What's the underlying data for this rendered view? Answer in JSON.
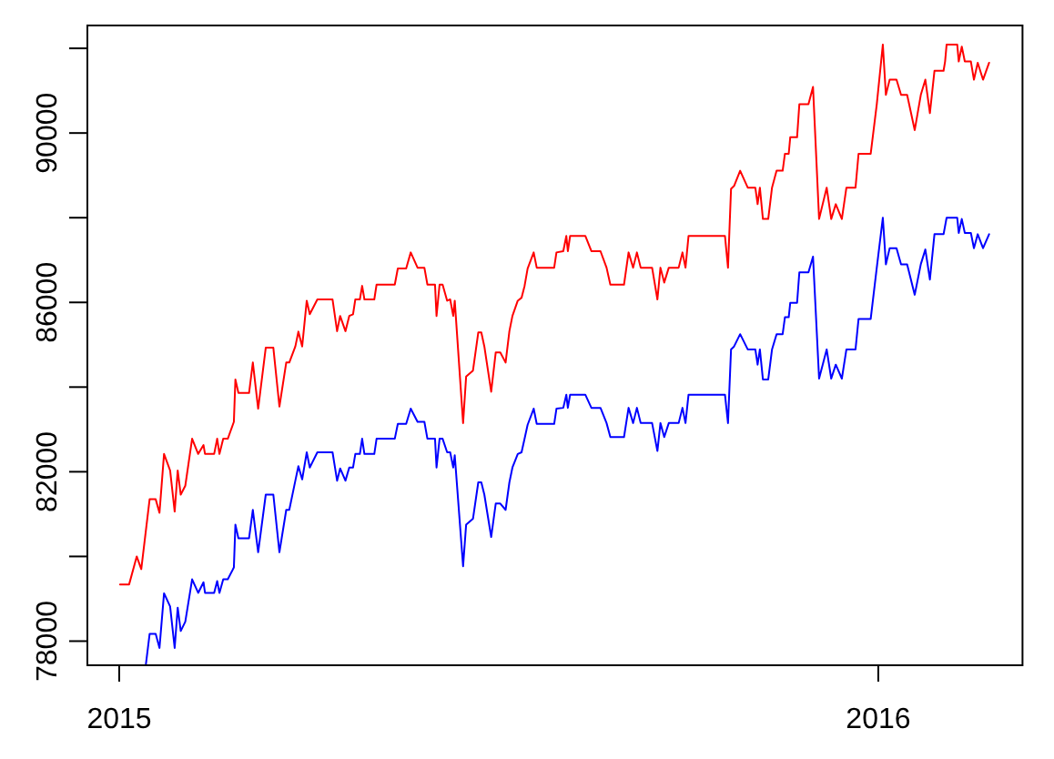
{
  "chart_data": {
    "type": "line",
    "xlim": [
      2014.958,
      2016.19
    ],
    "xticks": [
      2015,
      2016
    ],
    "ylim": [
      77430,
      92540
    ],
    "yticks": [
      78000,
      {
        "value": 80000,
        "label": null
      },
      82000,
      {
        "value": 84000,
        "label": null
      },
      86000,
      {
        "value": 88000,
        "label": null
      },
      90000,
      {
        "value": 92000,
        "label": null
      }
    ],
    "series": [
      {
        "color": "#ff0000",
        "x": [
          2015.001,
          2015.013,
          2015.023,
          2015.029,
          2015.04,
          2015.048,
          2015.053,
          2015.059,
          2015.067,
          2015.073,
          2015.077,
          2015.081,
          2015.087,
          2015.096,
          2015.104,
          2015.111,
          2015.113,
          2015.125,
          2015.129,
          2015.132,
          2015.137,
          2015.143,
          2015.151,
          2015.153,
          2015.157,
          2015.171,
          2015.176,
          2015.183,
          2015.193,
          2015.203,
          2015.211,
          2015.22,
          2015.224,
          2015.232,
          2015.236,
          2015.241,
          2015.247,
          2015.251,
          2015.261,
          2015.281,
          2015.287,
          2015.291,
          2015.298,
          2015.303,
          2015.308,
          2015.311,
          2015.317,
          2015.32,
          2015.323,
          2015.336,
          2015.339,
          2015.363,
          2015.367,
          2015.378,
          2015.384,
          2015.393,
          2015.402,
          2015.406,
          2015.416,
          2015.418,
          2015.422,
          2015.426,
          2015.432,
          2015.436,
          2015.44,
          2015.442,
          2015.453,
          2015.457,
          2015.466,
          2015.473,
          2015.477,
          2015.481,
          2015.49,
          2015.496,
          2015.502,
          2015.509,
          2015.514,
          2015.518,
          2015.525,
          2015.53,
          2015.534,
          2015.538,
          2015.546,
          2015.55,
          2015.573,
          2015.576,
          2015.585,
          2015.589,
          2015.591,
          2015.594,
          2015.614,
          2015.622,
          2015.634,
          2015.642,
          2015.647,
          2015.665,
          2015.671,
          2015.677,
          2015.682,
          2015.687,
          2015.702,
          2015.709,
          2015.713,
          2015.718,
          2015.724,
          2015.737,
          2015.742,
          2015.746,
          2015.75,
          2015.798,
          2015.802,
          2015.806,
          2015.81,
          2015.818,
          2015.828,
          2015.838,
          2015.841,
          2015.844,
          2015.848,
          2015.855,
          2015.86,
          2015.866,
          2015.874,
          2015.877,
          2015.882,
          2015.884,
          2015.893,
          2015.896,
          2015.908,
          2015.914,
          2015.922,
          2015.932,
          2015.938,
          2015.944,
          2015.952,
          2015.958,
          2015.97,
          2015.974,
          2015.99,
          2015.998,
          2016.006,
          2016.01,
          2016.015,
          2016.024,
          2016.03,
          2016.038,
          2016.048,
          2016.056,
          2016.062,
          2016.068,
          2016.074,
          2016.086,
          2016.088,
          2016.09,
          2016.104,
          2016.106,
          2016.11,
          2016.114,
          2016.122,
          2016.126,
          2016.131,
          2016.138,
          2016.146
        ],
        "values": [
          79340,
          79340,
          80000,
          79700,
          81350,
          81350,
          81030,
          82420,
          82030,
          81060,
          82030,
          81460,
          81670,
          82780,
          82420,
          82630,
          82420,
          82420,
          82780,
          82420,
          82780,
          82780,
          83180,
          84180,
          83860,
          83860,
          84580,
          83490,
          84930,
          84930,
          83540,
          84580,
          84580,
          84960,
          85310,
          84960,
          86040,
          85720,
          86070,
          86070,
          85320,
          85680,
          85320,
          85680,
          85720,
          86070,
          86070,
          86390,
          86070,
          86070,
          86420,
          86420,
          86800,
          86800,
          87180,
          86820,
          86820,
          86420,
          86420,
          85680,
          86420,
          86420,
          86040,
          86070,
          85680,
          86040,
          83150,
          84250,
          84390,
          85290,
          85290,
          84960,
          83890,
          84820,
          84820,
          84580,
          85320,
          85680,
          86040,
          86110,
          86390,
          86800,
          87180,
          86820,
          86820,
          87180,
          87210,
          87570,
          87210,
          87570,
          87570,
          87210,
          87210,
          86820,
          86420,
          86420,
          87180,
          86820,
          87180,
          86820,
          86820,
          86070,
          86820,
          86470,
          86820,
          86820,
          87180,
          86820,
          87570,
          87570,
          86820,
          88680,
          88750,
          89110,
          88710,
          88710,
          88320,
          88710,
          87970,
          87970,
          88710,
          89110,
          89110,
          89510,
          89510,
          89900,
          89900,
          90680,
          90680,
          91090,
          87970,
          88710,
          87970,
          88320,
          87970,
          88710,
          88710,
          89510,
          89510,
          90680,
          92090,
          90900,
          91260,
          91260,
          90900,
          90900,
          90070,
          90900,
          91260,
          90470,
          91470,
          91470,
          91690,
          92090,
          92090,
          91690,
          92040,
          91690,
          91690,
          91260,
          91660,
          91260,
          91660
        ]
      },
      {
        "color": "#0000ff",
        "x": [
          2015.035,
          2015.04,
          2015.048,
          2015.053,
          2015.059,
          2015.067,
          2015.073,
          2015.077,
          2015.081,
          2015.087,
          2015.096,
          2015.104,
          2015.111,
          2015.113,
          2015.125,
          2015.129,
          2015.132,
          2015.137,
          2015.143,
          2015.151,
          2015.153,
          2015.157,
          2015.171,
          2015.176,
          2015.183,
          2015.193,
          2015.203,
          2015.211,
          2015.22,
          2015.224,
          2015.232,
          2015.236,
          2015.241,
          2015.247,
          2015.251,
          2015.261,
          2015.281,
          2015.287,
          2015.291,
          2015.298,
          2015.303,
          2015.308,
          2015.311,
          2015.317,
          2015.32,
          2015.323,
          2015.336,
          2015.339,
          2015.363,
          2015.367,
          2015.378,
          2015.384,
          2015.393,
          2015.402,
          2015.406,
          2015.416,
          2015.418,
          2015.422,
          2015.426,
          2015.432,
          2015.436,
          2015.44,
          2015.442,
          2015.453,
          2015.457,
          2015.466,
          2015.473,
          2015.477,
          2015.481,
          2015.49,
          2015.496,
          2015.502,
          2015.509,
          2015.514,
          2015.518,
          2015.525,
          2015.53,
          2015.534,
          2015.538,
          2015.546,
          2015.55,
          2015.573,
          2015.576,
          2015.585,
          2015.589,
          2015.591,
          2015.594,
          2015.614,
          2015.622,
          2015.634,
          2015.642,
          2015.647,
          2015.665,
          2015.671,
          2015.677,
          2015.682,
          2015.687,
          2015.702,
          2015.709,
          2015.713,
          2015.718,
          2015.724,
          2015.737,
          2015.742,
          2015.746,
          2015.75,
          2015.798,
          2015.802,
          2015.806,
          2015.81,
          2015.818,
          2015.828,
          2015.838,
          2015.841,
          2015.844,
          2015.848,
          2015.855,
          2015.86,
          2015.866,
          2015.874,
          2015.877,
          2015.882,
          2015.884,
          2015.893,
          2015.896,
          2015.908,
          2015.914,
          2015.922,
          2015.932,
          2015.938,
          2015.944,
          2015.952,
          2015.958,
          2015.97,
          2015.974,
          2015.99,
          2015.998,
          2016.006,
          2016.01,
          2016.015,
          2016.024,
          2016.03,
          2016.038,
          2016.048,
          2016.056,
          2016.062,
          2016.068,
          2016.074,
          2016.086,
          2016.09,
          2016.104,
          2016.106,
          2016.11,
          2016.114,
          2016.122,
          2016.126,
          2016.131,
          2016.138,
          2016.146
        ],
        "values": [
          77440,
          78170,
          78170,
          77840,
          79130,
          78820,
          77840,
          78790,
          78240,
          78460,
          79460,
          79140,
          79390,
          79140,
          79140,
          79420,
          79140,
          79460,
          79460,
          79740,
          80750,
          80430,
          80430,
          81100,
          80100,
          81460,
          81460,
          80100,
          81100,
          81100,
          81790,
          82130,
          81820,
          82460,
          82100,
          82460,
          82460,
          81790,
          82080,
          81790,
          82100,
          82100,
          82420,
          82420,
          82780,
          82420,
          82420,
          82780,
          82780,
          83130,
          83130,
          83490,
          83180,
          83180,
          82780,
          82780,
          82100,
          82780,
          82780,
          82460,
          82460,
          82100,
          82390,
          79770,
          80750,
          80890,
          81750,
          81750,
          81460,
          80460,
          81250,
          81250,
          81100,
          81750,
          82100,
          82420,
          82460,
          82780,
          83110,
          83490,
          83130,
          83130,
          83490,
          83510,
          83820,
          83510,
          83820,
          83820,
          83510,
          83510,
          83150,
          82820,
          82820,
          83510,
          83150,
          83510,
          83150,
          83150,
          82490,
          83150,
          82820,
          83150,
          83150,
          83510,
          83150,
          83820,
          83820,
          83150,
          84890,
          84960,
          85250,
          84890,
          84890,
          84530,
          84890,
          84180,
          84180,
          84890,
          85250,
          85250,
          85650,
          85650,
          85990,
          85990,
          86710,
          86710,
          87080,
          84200,
          84890,
          84200,
          84530,
          84200,
          84890,
          84890,
          85610,
          85610,
          86820,
          88000,
          86900,
          87280,
          87280,
          86900,
          86900,
          86180,
          86900,
          87250,
          86540,
          87610,
          87610,
          88000,
          88000,
          87640,
          87970,
          87640,
          87640,
          87280,
          87610,
          87280,
          87610
        ]
      }
    ]
  }
}
